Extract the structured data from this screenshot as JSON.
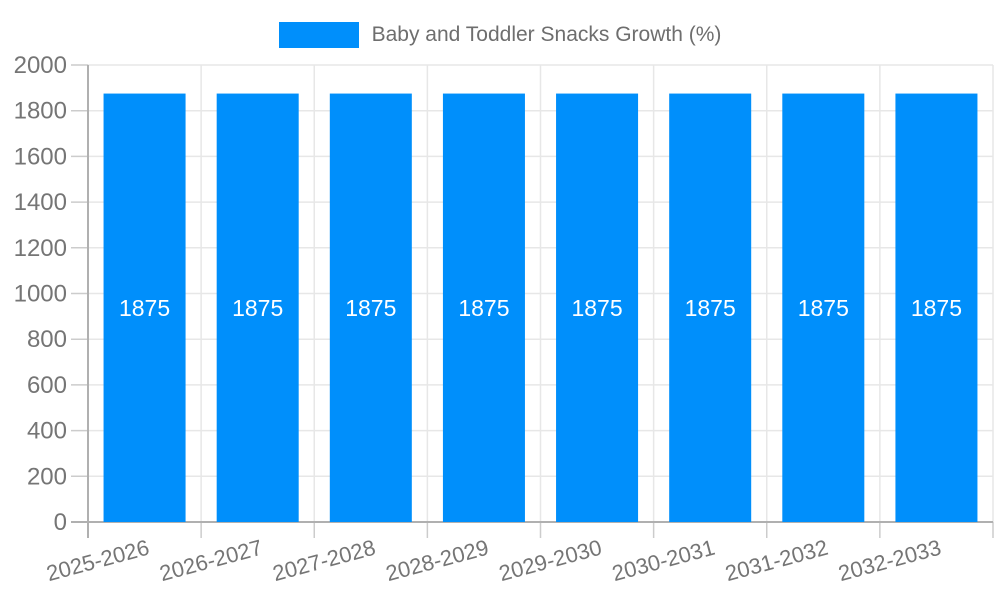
{
  "chart_data": {
    "type": "bar",
    "title": "",
    "xlabel": "",
    "ylabel": "",
    "legend": {
      "position": "top",
      "marker": "rectangle"
    },
    "categories": [
      "2025-2026",
      "2026-2027",
      "2027-2028",
      "2028-2029",
      "2029-2030",
      "2030-2031",
      "2031-2032",
      "2032-2033"
    ],
    "series": [
      {
        "name": "Baby and Toddler Snacks Growth (%)",
        "values": [
          1875,
          1875,
          1875,
          1875,
          1875,
          1875,
          1875,
          1875
        ]
      }
    ],
    "data_labels": {
      "visible": true,
      "values": [
        "1875",
        "1875",
        "1875",
        "1875",
        "1875",
        "1875",
        "1875",
        "1875"
      ]
    },
    "ylim": [
      0,
      2000
    ],
    "yticks": [
      0,
      200,
      400,
      600,
      800,
      1000,
      1200,
      1400,
      1600,
      1800,
      2000
    ],
    "x_tick_rotation_deg": -15,
    "grid": true,
    "colors": {
      "bar": "#008FFB",
      "grid": "#e7e7e7",
      "axis": "#b0b0b0",
      "tick": "#cccccc",
      "tick_label": "#757575",
      "legend_text": "#6e6e6e",
      "data_label": "#ffffff",
      "background": "#ffffff"
    }
  }
}
